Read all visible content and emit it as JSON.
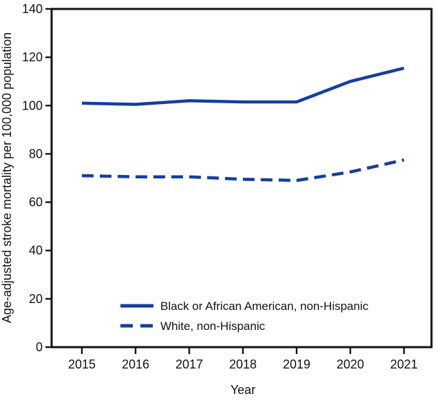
{
  "chart_data": {
    "type": "line",
    "title": "",
    "xlabel": "Year",
    "ylabel": "Age-adjusted  stroke mortality per 100,000 population",
    "x": [
      2015,
      2016,
      2017,
      2018,
      2019,
      2020,
      2021
    ],
    "ylim": [
      0,
      140
    ],
    "yticks": [
      0,
      20,
      40,
      60,
      80,
      100,
      120,
      140
    ],
    "grid": false,
    "legend_position": "inside-bottom-left",
    "line_color": "#153da1",
    "axis_color": "#111111",
    "series": [
      {
        "name": "Black or African American, non-Hispanic",
        "style": "solid",
        "values": [
          101,
          100.5,
          102,
          101.5,
          101.5,
          110,
          115.5
        ]
      },
      {
        "name": "White, non-Hispanic",
        "style": "dashed",
        "values": [
          71,
          70.5,
          70.5,
          69.5,
          69,
          72.5,
          77.5
        ]
      }
    ]
  }
}
